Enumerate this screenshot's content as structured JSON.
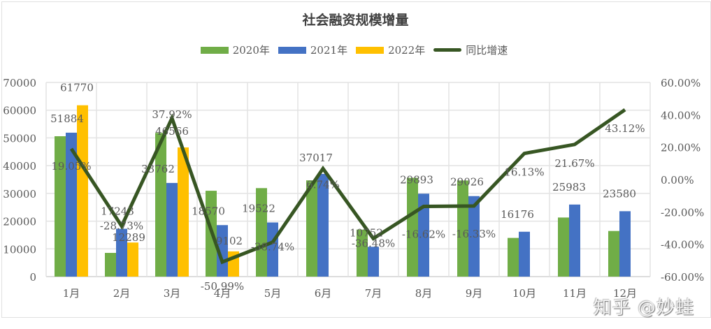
{
  "title": "社会融资规模增量",
  "legend": [
    {
      "label": "2020年",
      "color": "#70ad47",
      "type": "bar"
    },
    {
      "label": "2021年",
      "color": "#4472c4",
      "type": "bar"
    },
    {
      "label": "2022年",
      "color": "#ffc000",
      "type": "bar"
    },
    {
      "label": "同比增速",
      "color": "#375623",
      "type": "line"
    }
  ],
  "watermark": "知乎 @妙蛙",
  "chart_data": {
    "type": "bar",
    "title": "社会融资规模增量",
    "categories": [
      "1月",
      "2月",
      "3月",
      "4月",
      "5月",
      "6月",
      "7月",
      "8月",
      "9月",
      "10月",
      "11月",
      "12月"
    ],
    "series": [
      {
        "name": "2020年",
        "type": "bar",
        "color": "#70ad47",
        "values": [
          50600,
          8550,
          51800,
          30950,
          31900,
          34700,
          16950,
          35600,
          34650,
          13950,
          21300,
          16450
        ],
        "labels_shown": false
      },
      {
        "name": "2021年",
        "type": "bar",
        "color": "#4472c4",
        "values": [
          51884,
          17243,
          33762,
          18570,
          19522,
          37017,
          10752,
          29893,
          29026,
          16176,
          25983,
          23580
        ],
        "labels_shown": true
      },
      {
        "name": "2022年",
        "type": "bar",
        "color": "#ffc000",
        "values": [
          61770,
          12289,
          46566,
          9102,
          null,
          null,
          null,
          null,
          null,
          null,
          null,
          null
        ],
        "labels_shown": true
      },
      {
        "name": "同比增速",
        "type": "line",
        "axis": "right",
        "color": "#375623",
        "values": [
          19.05,
          -28.73,
          37.92,
          -50.99,
          -38.74,
          6.74,
          -36.48,
          -16.62,
          -16.33,
          16.13,
          21.67,
          43.12
        ],
        "labels": [
          "19.05%",
          "-28.73%",
          "37.92%",
          "-50.99%",
          "-38.74%",
          "6.74%",
          "-36.48%",
          "-16.62%",
          "-16.33%",
          "16.13%",
          "21.67%",
          "43.12%"
        ]
      }
    ],
    "left_axis": {
      "ylim": [
        0,
        70000
      ],
      "ticks": [
        "0",
        "10000",
        "20000",
        "30000",
        "40000",
        "50000",
        "60000",
        "70000"
      ]
    },
    "right_axis": {
      "ylim": [
        -60,
        60
      ],
      "ticks": [
        "-60.00%",
        "-40.00%",
        "-20.00%",
        "0.00%",
        "20.00%",
        "40.00%",
        "60.00%"
      ]
    },
    "xlabel": "",
    "ylabel": "",
    "grid": true,
    "legend_position": "top"
  }
}
